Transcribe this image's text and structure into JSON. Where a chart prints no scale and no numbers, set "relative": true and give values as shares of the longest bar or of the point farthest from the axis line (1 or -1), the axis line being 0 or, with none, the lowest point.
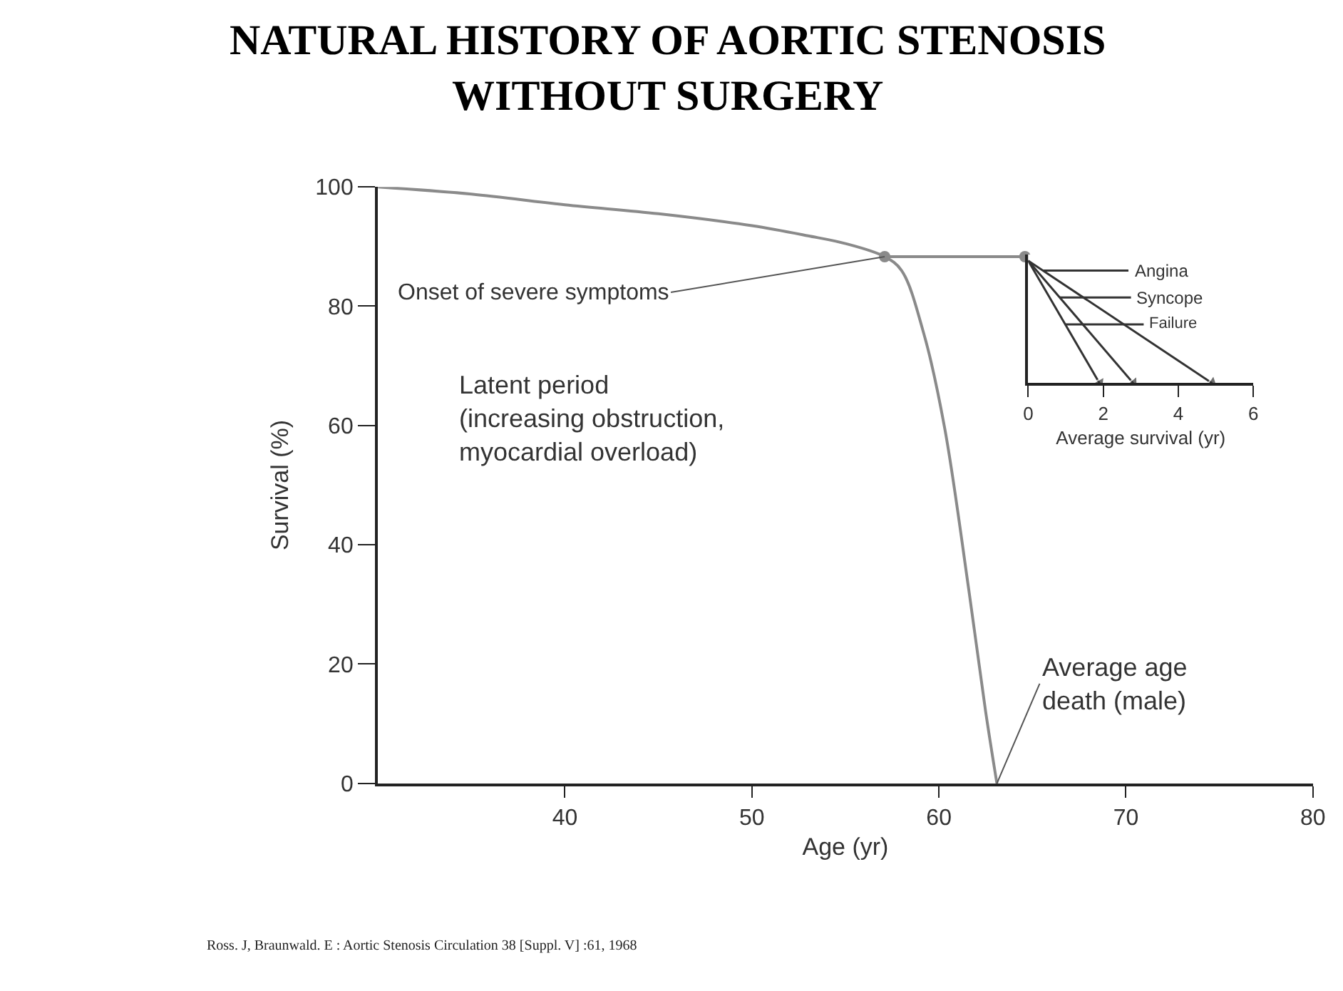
{
  "chart_data": [
    {
      "type": "line",
      "title": "NATURAL HISTORY OF AORTIC STENOSIS\nWITHOUT SURGERY",
      "xlabel": "Age (yr)",
      "ylabel": "Survival (%)",
      "xlim": [
        30,
        80
      ],
      "xticks": [
        40,
        50,
        60,
        70,
        80
      ],
      "ylim": [
        0,
        100
      ],
      "yticks": [
        0,
        20,
        40,
        60,
        80,
        100
      ],
      "grid": false,
      "legend": false,
      "series": [
        {
          "color": "#8a8a8a",
          "marker": "none",
          "x": [
            30,
            35,
            40,
            45,
            50,
            53,
            55,
            57.1,
            58,
            59.2,
            60.3,
            61.6,
            62.5,
            63.1
          ],
          "values": [
            100,
            98.8,
            97,
            95.5,
            93.5,
            91.8,
            90.5,
            88.3,
            86,
            75.3,
            59.7,
            32.4,
            12,
            0
          ]
        },
        {
          "color": "#8a8a8a",
          "marker": "circle",
          "x": [
            57.1,
            64.6
          ],
          "values": [
            88.3,
            88.3
          ]
        }
      ],
      "annotations": [
        {
          "text": "Onset of severe symptoms",
          "x": 57.1,
          "y": 88.3
        },
        "Latent period\n(increasing obstruction,\nmyocardial overload)",
        {
          "text": "Average age\ndeath (male)",
          "x": 63.1,
          "y": 0
        },
        "Ross. J, Braunwald. E : Aortic Stenosis Circulation 38 [Suppl. V] :61, 1968"
      ]
    },
    {
      "type": "line",
      "relative": true,
      "xlabel": "Average survival (yr)",
      "xlim": [
        0,
        6
      ],
      "xticks": [
        0,
        2,
        4,
        6
      ],
      "legend": "top left",
      "grid": false,
      "marker": "triangle",
      "line_style": "solid",
      "series": [
        {
          "name": "Angina",
          "color": "#333333",
          "x": [
            0,
            4.9
          ],
          "values": [
            1,
            0
          ]
        },
        {
          "name": "Syncope",
          "color": "#333333",
          "x": [
            0,
            2.8
          ],
          "values": [
            1,
            0
          ]
        },
        {
          "name": "Failure",
          "color": "#333333",
          "x": [
            0,
            1.9
          ],
          "values": [
            1,
            0
          ]
        }
      ]
    }
  ]
}
